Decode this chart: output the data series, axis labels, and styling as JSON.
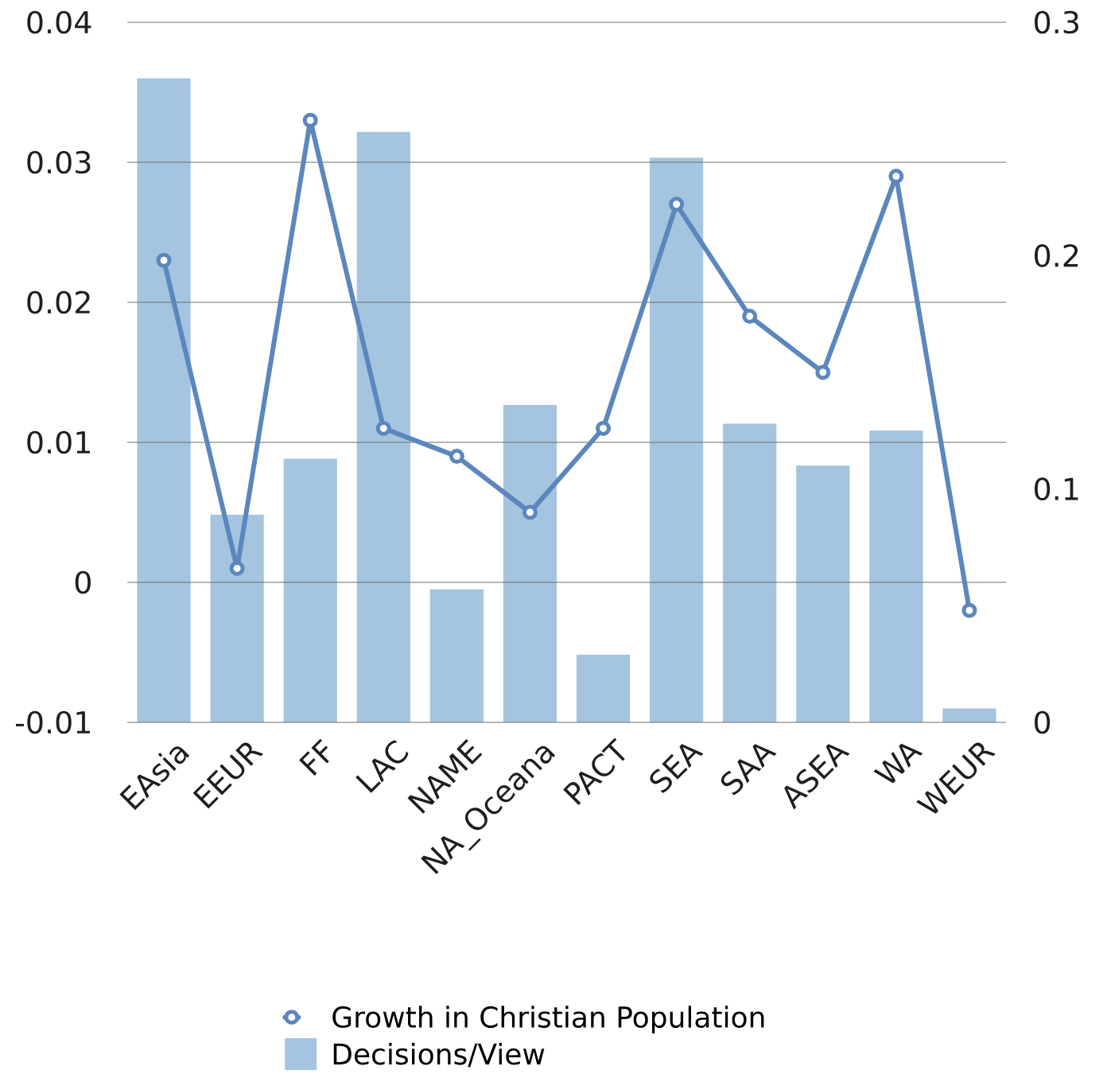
{
  "chart_data": {
    "type": "bar",
    "categories": [
      "EAsia",
      "EEUR",
      "FF",
      "LAC",
      "NAME",
      "NA_Oceana",
      "PACT",
      "SEA",
      "SAA",
      "ASEA",
      "WA",
      "WEUR"
    ],
    "series": [
      {
        "name": "Growth in Christian Population",
        "type": "line",
        "axis": "y",
        "color": "#5b87bd",
        "values": [
          0.023,
          0.001,
          0.033,
          0.011,
          0.009,
          0.005,
          0.011,
          0.027,
          0.019,
          0.015,
          0.029,
          -0.002
        ]
      },
      {
        "name": "Decisions/View",
        "type": "bar",
        "axis": "y2",
        "color": "#a4c4e0",
        "values": [
          0.276,
          0.089,
          0.113,
          0.253,
          0.057,
          0.136,
          0.029,
          0.242,
          0.128,
          0.11,
          0.125,
          0.006
        ]
      }
    ],
    "ylim": [
      -0.01,
      0.04
    ],
    "yticks": [
      -0.01,
      0,
      0.01,
      0.02,
      0.03,
      0.04
    ],
    "y2lim": [
      0,
      0.3
    ],
    "y2ticks": [
      0,
      0.1,
      0.2,
      0.3
    ],
    "grid": "y",
    "legend": "bottom",
    "marker": "circle",
    "line_style": "solid"
  }
}
